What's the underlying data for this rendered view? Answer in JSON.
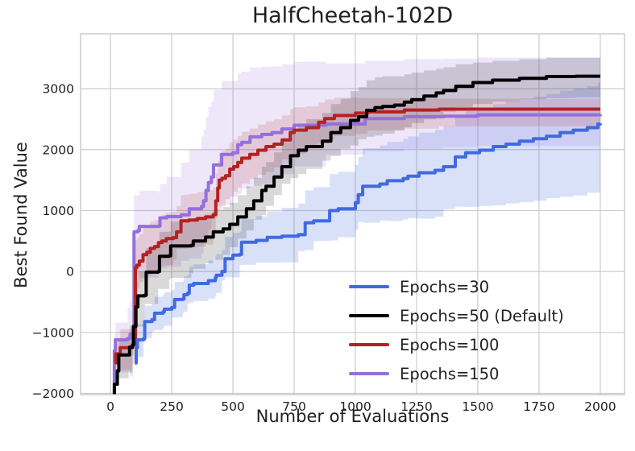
{
  "figure": {
    "title": "HalfCheetah-102D",
    "xlabel": "Number of Evaluations",
    "ylabel": "Best Found Value"
  },
  "style": {
    "grid_color": "#cccccc",
    "spine_color": "#c9c9c9",
    "text_color": "#1f1f1f",
    "background": "#ffffff",
    "line_width": 4
  },
  "chart_data": {
    "type": "line",
    "title": "HalfCheetah-102D",
    "xlabel": "Number of Evaluations",
    "ylabel": "Best Found Value",
    "grid": true,
    "legend_position": "lower right",
    "line_style": "step-after",
    "xlim": [
      -122,
      2099
    ],
    "ylim": [
      -2020,
      3900
    ],
    "x_ticks": [
      0,
      250,
      500,
      750,
      1000,
      1250,
      1500,
      1750,
      2000
    ],
    "x_tick_labels": [
      "0",
      "250",
      "500",
      "750",
      "1000",
      "1250",
      "1500",
      "1750",
      "2000"
    ],
    "y_ticks": [
      -2000,
      -1000,
      0,
      1000,
      2000,
      3000
    ],
    "y_tick_labels": [
      "−2000",
      "−1000",
      "0",
      "1000",
      "2000",
      "3000"
    ],
    "draw_order": [
      "Epochs=30",
      "Epochs=150",
      "Epochs=100",
      "Epochs=50 (Default)"
    ],
    "series": [
      {
        "name": "Epochs=30",
        "color": "#4169E1",
        "band_alpha": 0.2,
        "x": [
          100,
          105,
          110,
          135,
          140,
          170,
          180,
          215,
          220,
          250,
          262,
          295,
          300,
          315,
          322,
          340,
          400,
          428,
          432,
          455,
          468,
          500,
          528,
          535,
          595,
          640,
          700,
          767,
          795,
          830,
          895,
          930,
          1000,
          1012,
          1030,
          1100,
          1130,
          1195,
          1215,
          1260,
          1325,
          1360,
          1408,
          1450,
          1507,
          1563,
          1615,
          1670,
          1727,
          1780,
          1836,
          1890,
          1947,
          1990,
          2000
        ],
        "values": [
          -1500,
          -1250,
          -1120,
          -1105,
          -820,
          -790,
          -684,
          -660,
          -618,
          -592,
          -460,
          -450,
          -382,
          -355,
          -224,
          -197,
          -150,
          -100,
          -60,
          0,
          210,
          270,
          280,
          480,
          510,
          560,
          580,
          605,
          800,
          830,
          1000,
          1030,
          1130,
          1260,
          1400,
          1435,
          1490,
          1525,
          1565,
          1620,
          1660,
          1720,
          1880,
          1950,
          1990,
          2050,
          2090,
          2140,
          2180,
          2220,
          2280,
          2320,
          2360,
          2420,
          2430
        ],
        "band": {
          "x": [
            100,
            300,
            600,
            900,
            1200,
            1600,
            2000
          ],
          "upper": [
            250,
            300,
            400,
            600,
            650,
            700,
            680
          ],
          "lower": [
            300,
            300,
            400,
            500,
            700,
            1000,
            1130
          ]
        }
      },
      {
        "name": "Epochs=50 (Default)",
        "color": "#000000",
        "band_alpha": 0.15,
        "x": [
          13,
          16,
          28,
          34,
          74,
          78,
          90,
          94,
          104,
          112,
          140,
          146,
          195,
          200,
          240,
          246,
          330,
          338,
          388,
          420,
          460,
          487,
          520,
          555,
          585,
          618,
          635,
          668,
          700,
          735,
          767,
          800,
          865,
          900,
          940,
          980,
          1013,
          1046,
          1080,
          1112,
          1160,
          1200,
          1230,
          1280,
          1330,
          1360,
          1410,
          1480,
          1560,
          1670,
          1780,
          1900,
          2000
        ],
        "values": [
          -2100,
          -1850,
          -1630,
          -1370,
          -1370,
          -1240,
          -1210,
          -900,
          -580,
          -400,
          -390,
          -10,
          0,
          250,
          260,
          420,
          430,
          500,
          565,
          650,
          700,
          775,
          895,
          1030,
          1160,
          1330,
          1400,
          1550,
          1720,
          1900,
          1990,
          2050,
          2140,
          2280,
          2360,
          2480,
          2540,
          2645,
          2690,
          2710,
          2730,
          2780,
          2820,
          2880,
          2930,
          2970,
          3040,
          3100,
          3140,
          3170,
          3200,
          3205,
          3205
        ],
        "band": {
          "x": [
            13,
            100,
            250,
            500,
            800,
            1100,
            1500,
            2000
          ],
          "upper": [
            200,
            400,
            400,
            350,
            450,
            500,
            320,
            300
          ],
          "lower": [
            100,
            500,
            550,
            500,
            450,
            480,
            400,
            350
          ]
        }
      },
      {
        "name": "Epochs=100",
        "color": "#B22222",
        "band_alpha": 0.15,
        "x": [
          18,
          22,
          40,
          90,
          98,
          102,
          108,
          118,
          133,
          148,
          163,
          180,
          196,
          210,
          228,
          256,
          270,
          288,
          320,
          355,
          388,
          420,
          430,
          438,
          444,
          455,
          470,
          487,
          503,
          520,
          536,
          569,
          602,
          635,
          668,
          701,
          734,
          750,
          800,
          850,
          875,
          914,
          1000,
          1050,
          1200,
          1342,
          2000
        ],
        "values": [
          -1500,
          -1350,
          -1250,
          -1200,
          -1080,
          66,
          105,
          170,
          276,
          315,
          380,
          410,
          475,
          500,
          540,
          555,
          650,
          830,
          845,
          870,
          895,
          935,
          1160,
          1370,
          1500,
          1530,
          1570,
          1680,
          1720,
          1790,
          1860,
          1920,
          1990,
          2050,
          2090,
          2160,
          2280,
          2320,
          2360,
          2450,
          2510,
          2560,
          2600,
          2620,
          2650,
          2665,
          2665
        ],
        "band": {
          "x": [
            18,
            100,
            250,
            450,
            700,
            900,
            1100,
            1500,
            2000
          ],
          "upper": [
            250,
            450,
            420,
            450,
            400,
            300,
            200,
            150,
            120
          ],
          "lower": [
            200,
            450,
            450,
            500,
            450,
            400,
            350,
            300,
            280
          ]
        }
      },
      {
        "name": "Epochs=150",
        "color": "#9370DB",
        "band_alpha": 0.17,
        "x": [
          13,
          16,
          20,
          70,
          80,
          92,
          96,
          112,
          118,
          196,
          202,
          230,
          289,
          322,
          372,
          380,
          390,
          400,
          412,
          421,
          454,
          500,
          520,
          536,
          570,
          618,
          660,
          700,
          750,
          880,
          1040,
          1200,
          1360,
          1500,
          2000
        ],
        "values": [
          -2050,
          -1300,
          -1120,
          -1100,
          -1030,
          -1020,
          650,
          670,
          740,
          745,
          880,
          900,
          930,
          1030,
          1070,
          1160,
          1330,
          1460,
          1550,
          1750,
          1920,
          1950,
          2080,
          2120,
          2210,
          2250,
          2280,
          2340,
          2400,
          2420,
          2510,
          2540,
          2550,
          2570,
          2580
        ],
        "band": {
          "x": [
            13,
            90,
            200,
            400,
            700,
            1000,
            1400,
            2000
          ],
          "upper": [
            250,
            600,
            550,
            1240,
            1060,
            950,
            940,
            940
          ],
          "lower": [
            150,
            700,
            850,
            860,
            840,
            600,
            530,
            520
          ]
        }
      }
    ]
  }
}
